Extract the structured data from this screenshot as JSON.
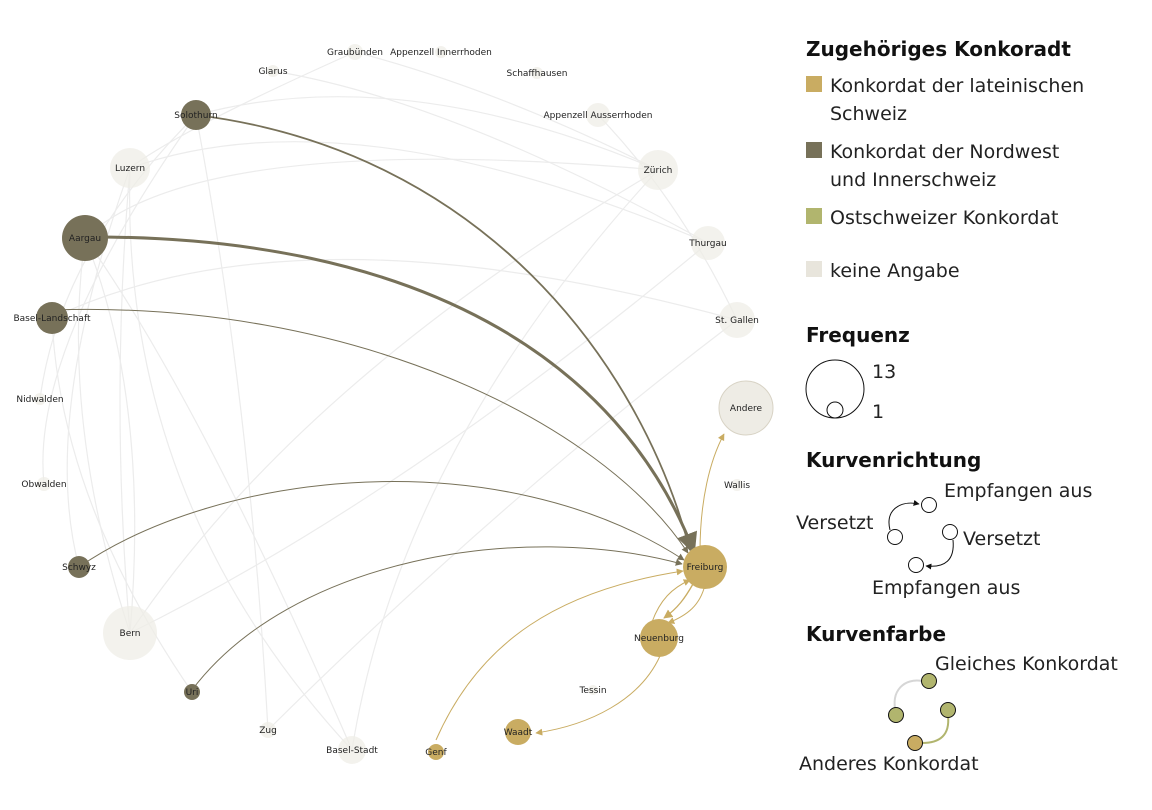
{
  "legend": {
    "concordat_title": "Zugehöriges Konkoradt",
    "concordats": [
      {
        "key": "latin",
        "label": [
          "Konkordat der lateinischen",
          "Schweiz"
        ],
        "color": "#c9ac62"
      },
      {
        "key": "nwi",
        "label": [
          "Konkordat der Nordwest",
          "und Innerschweiz"
        ],
        "color": "#777159"
      },
      {
        "key": "ost",
        "label": [
          "Ostschweizer Konkordat"
        ],
        "color": "#b1b56e"
      },
      {
        "key": "none",
        "label": [
          "keine Angabe"
        ],
        "color": "#e8e5dc"
      }
    ],
    "frequency_title": "Frequenz",
    "frequency_max": "13",
    "frequency_min": "1",
    "direction_title": "Kurvenrichtung",
    "direction_labels": {
      "received_top": "Empfangen aus",
      "moved_left": "Versetzt",
      "moved_right": "Versetzt",
      "received_bottom": "Empfangen aus"
    },
    "color_title": "Kurvenfarbe",
    "color_labels": {
      "same": "Gleiches Konkordat",
      "other": "Anderes Konkordat"
    },
    "colors": {
      "edge_same": "#d6d6d6",
      "edge_other": "#b1b56e",
      "node_fill_a": "#b1b56e",
      "node_fill_b": "#c9ac62"
    }
  },
  "nodes": [
    {
      "id": "graubuenden",
      "label": "Graubünden",
      "concordat": "none"
    },
    {
      "id": "appenzell_ir",
      "label": "Appenzell Innerrhoden",
      "concordat": "none"
    },
    {
      "id": "schaffhausen",
      "label": "Schaffhausen",
      "concordat": "none"
    },
    {
      "id": "appenzell_ar",
      "label": "Appenzell Ausserrhoden",
      "concordat": "none"
    },
    {
      "id": "zuerich",
      "label": "Zürich",
      "concordat": "none"
    },
    {
      "id": "thurgau",
      "label": "Thurgau",
      "concordat": "none"
    },
    {
      "id": "st_gallen",
      "label": "St. Gallen",
      "concordat": "none"
    },
    {
      "id": "andere",
      "label": "Andere",
      "concordat": "none"
    },
    {
      "id": "wallis",
      "label": "Wallis",
      "concordat": "none"
    },
    {
      "id": "freiburg",
      "label": "Freiburg",
      "concordat": "latin"
    },
    {
      "id": "neuenburg",
      "label": "Neuenburg",
      "concordat": "latin"
    },
    {
      "id": "tessin",
      "label": "Tessin",
      "concordat": "none"
    },
    {
      "id": "waadt",
      "label": "Waadt",
      "concordat": "latin"
    },
    {
      "id": "genf",
      "label": "Genf",
      "concordat": "latin"
    },
    {
      "id": "basel_stadt",
      "label": "Basel-Stadt",
      "concordat": "none"
    },
    {
      "id": "zug",
      "label": "Zug",
      "concordat": "none"
    },
    {
      "id": "uri",
      "label": "Uri",
      "concordat": "nwi"
    },
    {
      "id": "bern",
      "label": "Bern",
      "concordat": "none"
    },
    {
      "id": "schwyz",
      "label": "Schwyz",
      "concordat": "nwi"
    },
    {
      "id": "obwalden",
      "label": "Obwalden",
      "concordat": "none"
    },
    {
      "id": "nidwalden",
      "label": "Nidwalden",
      "concordat": "none"
    },
    {
      "id": "basel_landschaft",
      "label": "Basel-Landschaft",
      "concordat": "nwi"
    },
    {
      "id": "aargau",
      "label": "Aargau",
      "concordat": "nwi"
    },
    {
      "id": "luzern",
      "label": "Luzern",
      "concordat": "none"
    },
    {
      "id": "solothurn",
      "label": "Solothurn",
      "concordat": "nwi"
    },
    {
      "id": "glarus",
      "label": "Glarus",
      "concordat": "none"
    }
  ]
}
